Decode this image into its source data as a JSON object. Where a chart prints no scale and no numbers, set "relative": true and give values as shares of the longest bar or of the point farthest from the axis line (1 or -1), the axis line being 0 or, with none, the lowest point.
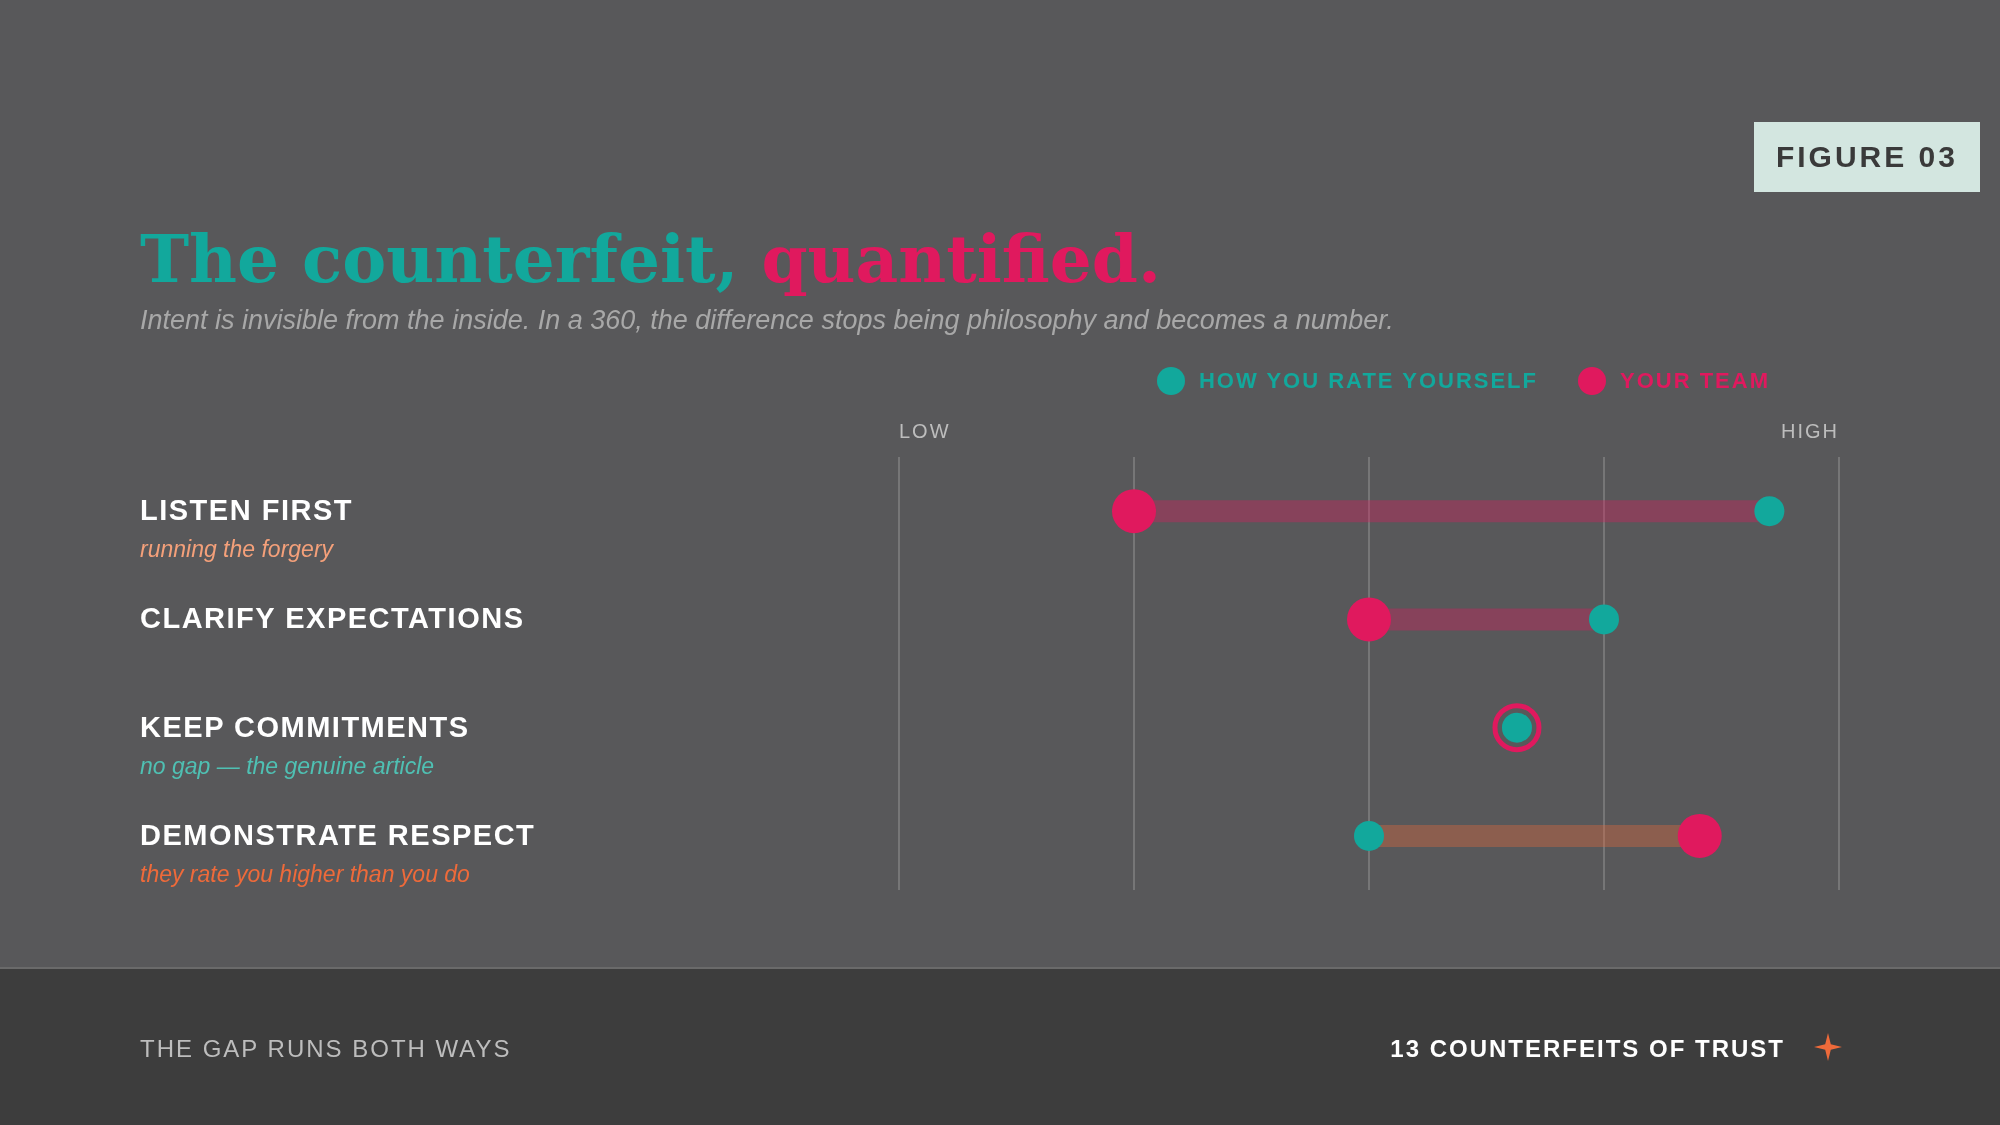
{
  "chart_data": {
    "type": "scatter",
    "orientation": "horizontal",
    "relative": true,
    "title": "The counterfeit, quantified.",
    "subtitle": "Intent is invisible from the inside. In a 360, the difference stops being philosophy and becomes a number.",
    "categories": [
      "LISTEN FIRST",
      "CLARIFY EXPECTATIONS",
      "KEEP COMMITMENTS",
      "DEMONSTRATE RESPECT"
    ],
    "series": [
      {
        "name": "HOW YOU RATE YOURSELF",
        "color": "#12a89c",
        "values": [
          1,
          0.81,
          0.71,
          0.54
        ]
      },
      {
        "name": "YOUR TEAM",
        "color": "#e0195e",
        "values": [
          0.27,
          0.54,
          0.71,
          0.92
        ]
      }
    ],
    "grid": "x",
    "legend": "top right",
    "marker": "circle",
    "annotations": [
      "running the forgery",
      "no gap — the genuine article",
      "they rate you higher than you do",
      "LOW",
      "HIGH",
      "FIGURE 03",
      "THE GAP RUNS BOTH WAYS",
      "13 COUNTERFEITS OF TRUST"
    ]
  }
}
